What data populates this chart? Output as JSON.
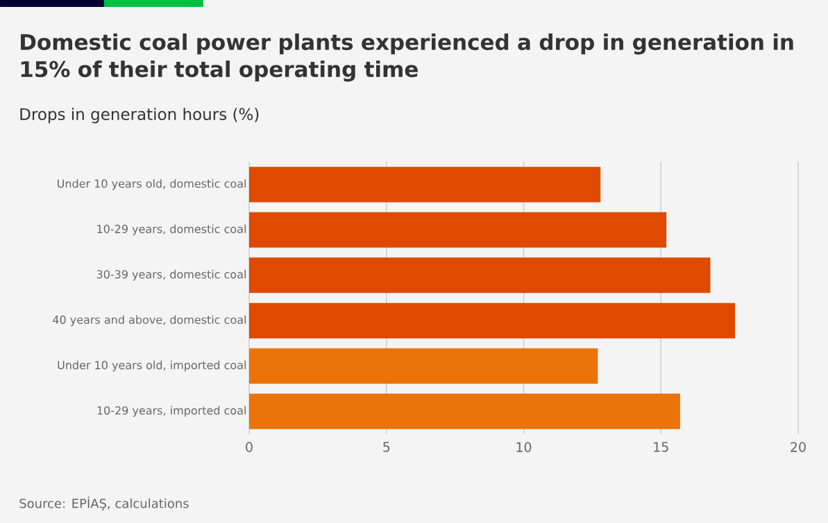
{
  "chart_data": {
    "type": "bar",
    "orientation": "horizontal",
    "title": "Domestic coal power plants experienced a drop in generation in 15% of their total operating time",
    "subtitle": "Drops in generation hours (%)",
    "categories": [
      "Under 10 years old, domestic coal",
      "10-29 years, domestic coal",
      "30-39 years, domestic coal",
      "40 years and above, domestic coal",
      "Under 10 years old, imported coal",
      "10-29 years, imported coal"
    ],
    "values": [
      12.8,
      15.2,
      16.8,
      17.7,
      12.7,
      15.7
    ],
    "colors": [
      "#dd4a00",
      "#dd4a00",
      "#dd4a00",
      "#dd4a00",
      "#eb7307",
      "#eb7307"
    ],
    "xlim": [
      0,
      20
    ],
    "xticks": [
      0,
      5,
      10,
      15,
      20
    ],
    "grid": "x",
    "annotations": [
      "Source: EPİAŞ, calculations"
    ]
  }
}
